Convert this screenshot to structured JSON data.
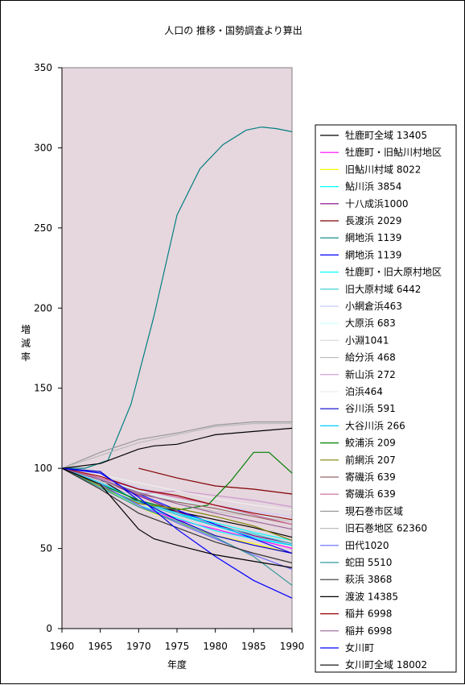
{
  "chart_data": {
    "type": "line",
    "title": "人口の 推移・国勢調査より算出",
    "xlabel": "年度",
    "ylabel": "増減率",
    "xlim": [
      1960,
      1990
    ],
    "ylim": [
      0,
      350
    ],
    "xticks": [
      1960,
      1965,
      1970,
      1975,
      1980,
      1985,
      1990
    ],
    "yticks": [
      0,
      50,
      100,
      150,
      200,
      250,
      300,
      350
    ],
    "plot_background": "#E6D6DE",
    "grid": false,
    "legend_position": "right",
    "series": [
      {
        "name": "牡鹿町全域 13405",
        "color": "#000000",
        "x": [
          1960,
          1965,
          1970,
          1975,
          1980,
          1985,
          1990
        ],
        "y": [
          100,
          93,
          79,
          73,
          68,
          63,
          57
        ]
      },
      {
        "name": "牡鹿町・旧鮎川村地区",
        "color": "#FF00FF",
        "x": [
          1960,
          1965,
          1970,
          1975,
          1980,
          1985,
          1990
        ],
        "y": [
          100,
          90,
          77,
          68,
          62,
          56,
          50
        ]
      },
      {
        "name": "旧鮎川村域 8022",
        "color": "#FFFF00",
        "x": [
          1960,
          1965,
          1970,
          1975,
          1980,
          1985,
          1990
        ],
        "y": [
          100,
          89,
          76,
          66,
          58,
          53,
          47
        ]
      },
      {
        "name": "鮎川浜 3854",
        "color": "#00FFFF",
        "x": [
          1960,
          1965,
          1970,
          1975,
          1980,
          1985,
          1990
        ],
        "y": [
          100,
          89,
          77,
          69,
          61,
          56,
          52
        ]
      },
      {
        "name": "十八成浜1000",
        "color": "#800080",
        "x": [
          1960,
          1965,
          1970,
          1975,
          1980,
          1985,
          1990
        ],
        "y": [
          100,
          93,
          83,
          73,
          65,
          58,
          53
        ]
      },
      {
        "name": "長渡浜 2029",
        "color": "#800000",
        "x": [
          1970,
          1975,
          1980,
          1985,
          1990
        ],
        "y": [
          100,
          94,
          89,
          87,
          84
        ]
      },
      {
        "name": "網地浜 1139",
        "color": "#008080",
        "x": [
          1960,
          1963,
          1966,
          1969,
          1972,
          1975,
          1978,
          1981,
          1984,
          1986,
          1988,
          1990
        ],
        "y": [
          100,
          100,
          105,
          140,
          195,
          258,
          287,
          302,
          311,
          313,
          312,
          310
        ]
      },
      {
        "name": "網地浜 1139",
        "color": "#0000FF",
        "x": [
          1960,
          1965,
          1970,
          1975,
          1980,
          1985,
          1990
        ],
        "y": [
          100,
          93,
          84,
          74,
          65,
          56,
          47
        ]
      },
      {
        "name": "牡鹿町・旧大原村地区",
        "color": "#00FFFF",
        "x": [
          1960,
          1965,
          1970,
          1975,
          1980,
          1985,
          1990
        ],
        "y": [
          100,
          90,
          80,
          72,
          66,
          60,
          55
        ]
      },
      {
        "name": "旧大原村域 6442",
        "color": "#33CCCC",
        "x": [
          1960,
          1965,
          1970,
          1975,
          1980,
          1985,
          1990
        ],
        "y": [
          100,
          88,
          79,
          71,
          64,
          59,
          53
        ]
      },
      {
        "name": "小網倉浜463",
        "color": "#CCCCFF",
        "x": [
          1960,
          1965,
          1970,
          1975,
          1980,
          1985,
          1990
        ],
        "y": [
          100,
          95,
          88,
          82,
          77,
          73,
          70
        ]
      },
      {
        "name": "大原浜 683",
        "color": "#CCFFFF",
        "x": [
          1960,
          1965,
          1970,
          1975,
          1980,
          1985,
          1990
        ],
        "y": [
          100,
          94,
          86,
          80,
          75,
          71,
          68
        ]
      },
      {
        "name": "小淵1041",
        "color": "#DDDDDD",
        "x": [
          1960,
          1965,
          1970,
          1975,
          1980,
          1985,
          1990
        ],
        "y": [
          100,
          96,
          90,
          84,
          79,
          75,
          72
        ]
      },
      {
        "name": "給分浜 468",
        "color": "#C0C0C0",
        "x": [
          1960,
          1965,
          1970,
          1975,
          1980,
          1985,
          1990
        ],
        "y": [
          100,
          92,
          85,
          78,
          73,
          70,
          67
        ]
      },
      {
        "name": "新山浜 272",
        "color": "#CC99CC",
        "x": [
          1960,
          1965,
          1970,
          1975,
          1980,
          1985,
          1990
        ],
        "y": [
          100,
          94,
          84,
          86,
          83,
          80,
          76
        ]
      },
      {
        "name": "泊浜464",
        "color": "#EEEEEE",
        "x": [
          1960,
          1965,
          1970,
          1975,
          1980,
          1985,
          1990
        ],
        "y": [
          100,
          96,
          91,
          86,
          81,
          77,
          74
        ]
      },
      {
        "name": "谷川浜 591",
        "color": "#0000CC",
        "x": [
          1960,
          1965,
          1970,
          1975,
          1980,
          1985,
          1990
        ],
        "y": [
          100,
          98,
          80,
          68,
          58,
          52,
          47
        ]
      },
      {
        "name": "大谷川浜 266",
        "color": "#00CCFF",
        "x": [
          1960,
          1965,
          1970,
          1975,
          1980,
          1985,
          1990
        ],
        "y": [
          100,
          91,
          80,
          72,
          64,
          57,
          52
        ]
      },
      {
        "name": "鮫浦浜 209",
        "color": "#008000",
        "x": [
          1960,
          1965,
          1970,
          1975,
          1979,
          1982,
          1985,
          1987,
          1990
        ],
        "y": [
          100,
          90,
          80,
          74,
          77,
          92,
          110,
          110,
          97
        ]
      },
      {
        "name": "前網浜 207",
        "color": "#808000",
        "x": [
          1960,
          1965,
          1970,
          1975,
          1980,
          1985,
          1990
        ],
        "y": [
          100,
          89,
          78,
          75,
          70,
          64,
          55
        ]
      },
      {
        "name": "寄磯浜 639",
        "color": "#996666",
        "x": [
          1960,
          1965,
          1970,
          1975,
          1980,
          1985,
          1990
        ],
        "y": [
          100,
          93,
          84,
          79,
          75,
          70,
          65
        ]
      },
      {
        "name": "寄磯浜 639",
        "color": "#CC6699",
        "x": [
          1960,
          1965,
          1970,
          1975,
          1980,
          1985,
          1990
        ],
        "y": [
          100,
          94,
          87,
          82,
          77,
          71,
          65
        ]
      },
      {
        "name": "現石巻市区域",
        "color": "#999999",
        "x": [
          1960,
          1965,
          1970,
          1975,
          1980,
          1985,
          1990
        ],
        "y": [
          100,
          110,
          118,
          122,
          127,
          129,
          129
        ]
      },
      {
        "name": "旧石巻地区 62360",
        "color": "#BBBBBB",
        "x": [
          1960,
          1965,
          1970,
          1975,
          1980,
          1985,
          1990
        ],
        "y": [
          100,
          108,
          116,
          121,
          126,
          128,
          128
        ]
      },
      {
        "name": "田代1020",
        "color": "#6666FF",
        "x": [
          1960,
          1965,
          1970,
          1975,
          1980,
          1985,
          1990
        ],
        "y": [
          100,
          90,
          77,
          66,
          56,
          46,
          37
        ]
      },
      {
        "name": "蛇田 5510",
        "color": "#339999",
        "x": [
          1960,
          1965,
          1970,
          1975,
          1980,
          1985,
          1990
        ],
        "y": [
          100,
          88,
          76,
          67,
          57,
          45,
          27
        ]
      },
      {
        "name": "萩浜 3868",
        "color": "#333333",
        "x": [
          1960,
          1965,
          1970,
          1975,
          1980,
          1985,
          1990
        ],
        "y": [
          100,
          87,
          72,
          63,
          54,
          47,
          41
        ]
      },
      {
        "name": "渡波 14385",
        "color": "#000000",
        "x": [
          1960,
          1965,
          1970,
          1972,
          1975,
          1980,
          1985,
          1990
        ],
        "y": [
          100,
          103,
          112,
          114,
          115,
          121,
          123,
          125
        ]
      },
      {
        "name": "稲井 6998",
        "color": "#990000",
        "x": [
          1960,
          1965,
          1970,
          1975,
          1980,
          1985,
          1990
        ],
        "y": [
          100,
          95,
          87,
          83,
          77,
          72,
          68
        ]
      },
      {
        "name": "稲井 6998",
        "color": "#996699",
        "x": [
          1960,
          1965,
          1970,
          1975,
          1980,
          1985,
          1990
        ],
        "y": [
          100,
          93,
          85,
          78,
          72,
          67,
          62
        ]
      },
      {
        "name": "女川町",
        "color": "#0000FF",
        "x": [
          1960,
          1965,
          1970,
          1975,
          1980,
          1985,
          1990
        ],
        "y": [
          100,
          97,
          82,
          62,
          45,
          30,
          19
        ]
      },
      {
        "name": "女川町全域 18002",
        "color": "#000000",
        "x": [
          1960,
          1965,
          1970,
          1972,
          1975,
          1980,
          1985,
          1990
        ],
        "y": [
          100,
          90,
          62,
          56,
          52,
          46,
          42,
          38
        ]
      }
    ]
  }
}
